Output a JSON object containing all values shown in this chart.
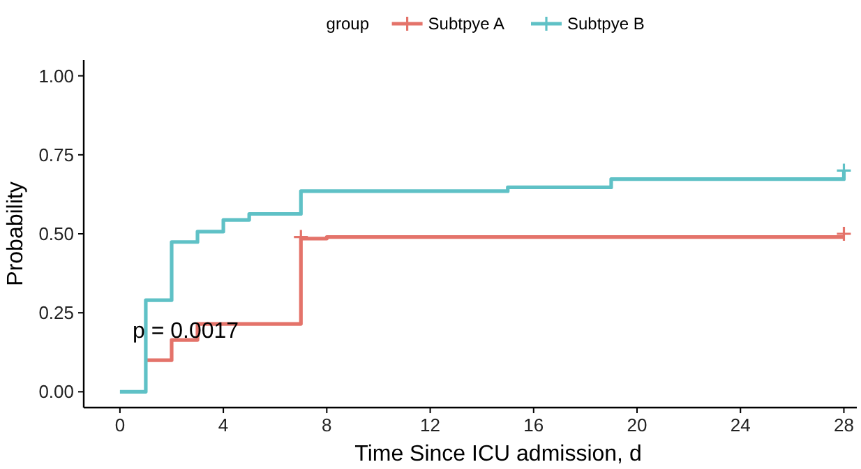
{
  "chart_data": {
    "type": "step",
    "xlabel": "Time Since ICU admission, d",
    "ylabel": "Probability",
    "legend_title": "group",
    "legend": "top",
    "series": [
      {
        "name": "Subtpye A",
        "color": "#e4736a",
        "x": [
          1,
          2,
          3,
          7,
          8,
          28
        ],
        "values": [
          0.1,
          0.164,
          0.215,
          0.485,
          0.49,
          0.49
        ]
      },
      {
        "name": "Subtpye B",
        "color": "#5fc1c6",
        "x": [
          0,
          1,
          2,
          3,
          4,
          5,
          7,
          15,
          19,
          28
        ],
        "values": [
          0,
          0.29,
          0.474,
          0.507,
          0.544,
          0.563,
          0.635,
          0.647,
          0.673,
          0.7
        ]
      },
      {
        "type": "scatter",
        "color": "#e4736a",
        "marker": "cross",
        "x": [
          7,
          28
        ],
        "values": [
          0.49,
          0.5
        ]
      },
      {
        "type": "scatter",
        "color": "#5fc1c6",
        "marker": "cross",
        "x": [
          28
        ],
        "values": [
          0.7
        ]
      }
    ],
    "xlim": [
      -1.4,
      28.5
    ],
    "ylim": [
      -0.05,
      1.05
    ],
    "xticks": [
      0,
      4,
      8,
      12,
      16,
      20,
      24,
      28
    ],
    "yticks": [
      {
        "value": 0,
        "label": "0.00"
      },
      {
        "value": 0.25,
        "label": "0.25"
      },
      {
        "value": 0.5,
        "label": "0.50"
      },
      {
        "value": 0.75,
        "label": "0.75"
      },
      {
        "value": 1,
        "label": "1.00"
      }
    ],
    "grid": false,
    "line_style": "solid",
    "annotations": [
      "p = 0.0017"
    ]
  }
}
